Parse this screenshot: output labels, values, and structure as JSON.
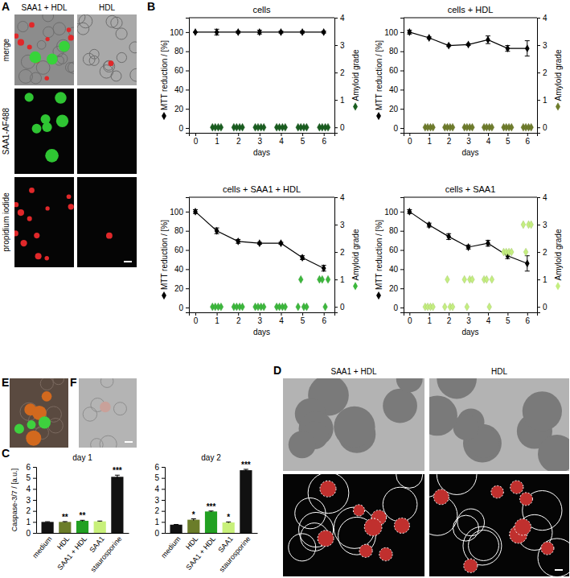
{
  "figure": {
    "panel_labels": [
      "A",
      "B",
      "C",
      "D",
      "E",
      "F"
    ],
    "panel_a": {
      "columns": [
        "SAA1 + HDL",
        "HDL"
      ],
      "rows": [
        "merge",
        "SAA1-AF488",
        "propidium iodide"
      ]
    },
    "panel_d": {
      "columns": [
        "SAA1 + HDL",
        "HDL"
      ]
    }
  },
  "chart_data": [
    {
      "type": "line",
      "title": "cells",
      "xlabel": "days",
      "ylabel": "MTT reduction / [%]",
      "y2label": "Amyloid grade",
      "x": [
        0,
        1,
        2,
        3,
        4,
        5,
        6
      ],
      "xlim": [
        -0.3,
        6.5
      ],
      "xticks": [
        0,
        1,
        2,
        3,
        4,
        5,
        6
      ],
      "ylim": [
        -5,
        115
      ],
      "yticks": [
        0,
        20,
        40,
        60,
        80,
        100
      ],
      "y2lim": [
        -0.2,
        4
      ],
      "y2ticks": [
        0,
        1,
        2,
        3,
        4
      ],
      "series": [
        {
          "type": "line",
          "marker": "diamond",
          "color": "#000000",
          "values": [
            100,
            100,
            100,
            100,
            100,
            100,
            100
          ],
          "errors": [
            0,
            3,
            1,
            2,
            1,
            1,
            1
          ]
        },
        {
          "type": "scatter",
          "marker": "diamond",
          "axis": "y2",
          "color": "#1a5e20",
          "x": [
            0.8,
            0.93,
            1.07,
            1.2,
            1.8,
            1.93,
            2.07,
            2.2,
            2.8,
            2.93,
            3.07,
            3.2,
            3.8,
            3.93,
            4.07,
            4.2,
            4.8,
            4.93,
            5.07,
            5.2,
            5.8,
            5.93,
            6.07,
            6.2
          ],
          "values": [
            0,
            0,
            0,
            0,
            0,
            0,
            0,
            0,
            0,
            0,
            0,
            0,
            0,
            0,
            0,
            0,
            0,
            0,
            0,
            0,
            0,
            0,
            0,
            0
          ]
        }
      ]
    },
    {
      "type": "line",
      "title": "cells + HDL",
      "xlabel": "days",
      "ylabel": "MTT reduction / [%]",
      "y2label": "Amyloid grade",
      "x": [
        0,
        1,
        2,
        3,
        4,
        5,
        6
      ],
      "xlim": [
        -0.3,
        6.5
      ],
      "xticks": [
        0,
        1,
        2,
        3,
        4,
        5,
        6
      ],
      "ylim": [
        -5,
        115
      ],
      "yticks": [
        0,
        20,
        40,
        60,
        80,
        100
      ],
      "y2lim": [
        -0.2,
        4
      ],
      "y2ticks": [
        0,
        1,
        2,
        3,
        4
      ],
      "series": [
        {
          "type": "line",
          "marker": "diamond",
          "color": "#000000",
          "values": [
            100,
            94,
            86,
            87,
            92,
            83,
            83
          ],
          "errors": [
            2,
            1,
            1,
            1,
            4,
            3,
            8
          ]
        },
        {
          "type": "scatter",
          "marker": "diamond",
          "axis": "y2",
          "color": "#6f7d2c",
          "x": [
            0.8,
            0.93,
            1.07,
            1.2,
            1.8,
            1.93,
            2.07,
            2.2,
            2.8,
            2.93,
            3.07,
            3.2,
            3.8,
            3.93,
            4.07,
            4.2,
            4.8,
            4.93,
            5.07,
            5.2,
            5.8,
            5.93,
            6.07,
            6.2
          ],
          "values": [
            0,
            0,
            0,
            0,
            0,
            0,
            0,
            0,
            0,
            0,
            0,
            0,
            0,
            0,
            0,
            0,
            0,
            0,
            0,
            0,
            0,
            0,
            0,
            0
          ]
        }
      ]
    },
    {
      "type": "line",
      "title": "cells + SAA1 + HDL",
      "xlabel": "days",
      "ylabel": "MTT reduction / [%]",
      "y2label": "Amyloid grade",
      "x": [
        0,
        1,
        2,
        3,
        4,
        5,
        6
      ],
      "xlim": [
        -0.3,
        6.5
      ],
      "xticks": [
        0,
        1,
        2,
        3,
        4,
        5,
        6
      ],
      "ylim": [
        -5,
        115
      ],
      "yticks": [
        0,
        20,
        40,
        60,
        80,
        100
      ],
      "y2lim": [
        -0.2,
        4
      ],
      "y2ticks": [
        0,
        1,
        2,
        3,
        4
      ],
      "series": [
        {
          "type": "line",
          "marker": "diamond",
          "color": "#000000",
          "values": [
            100,
            80,
            69,
            67,
            67,
            52,
            41
          ],
          "errors": [
            2,
            3,
            2,
            1,
            1,
            2,
            3
          ]
        },
        {
          "type": "scatter",
          "marker": "diamond",
          "axis": "y2",
          "color": "#3cb83c",
          "x": [
            0.8,
            0.93,
            1.07,
            1.2,
            1.8,
            1.93,
            2.07,
            2.2,
            2.8,
            2.93,
            3.07,
            3.2,
            3.8,
            3.93,
            4.07,
            4.2,
            4.8,
            4.93,
            5.07,
            5.2,
            5.8,
            5.93,
            6.07,
            6.2
          ],
          "values": [
            0,
            0,
            0,
            0,
            0,
            0,
            0,
            0,
            0,
            0,
            0,
            0,
            0,
            0,
            0,
            0,
            0,
            1,
            0,
            0,
            1,
            1,
            0,
            1
          ]
        }
      ]
    },
    {
      "type": "line",
      "title": "cells + SAA1",
      "xlabel": "days",
      "ylabel": "MTT reduction / [%]",
      "y2label": "Amyloid grade",
      "x": [
        0,
        1,
        2,
        3,
        4,
        5,
        6
      ],
      "xlim": [
        -0.3,
        6.5
      ],
      "xticks": [
        0,
        1,
        2,
        3,
        4,
        5,
        6
      ],
      "ylim": [
        -5,
        115
      ],
      "yticks": [
        0,
        20,
        40,
        60,
        80,
        100
      ],
      "y2lim": [
        -0.2,
        4
      ],
      "y2ticks": [
        0,
        1,
        2,
        3,
        4
      ],
      "series": [
        {
          "type": "line",
          "marker": "diamond",
          "color": "#000000",
          "values": [
            100,
            86,
            74,
            63,
            67,
            54,
            46
          ],
          "errors": [
            2,
            2,
            3,
            2,
            3,
            3,
            8
          ]
        },
        {
          "type": "scatter",
          "marker": "diamond",
          "axis": "y2",
          "color": "#c4ee80",
          "x": [
            0.8,
            0.93,
            1.07,
            1.2,
            1.8,
            1.93,
            2.07,
            2.2,
            2.8,
            2.93,
            3.07,
            3.2,
            3.8,
            3.93,
            4.07,
            4.2,
            4.8,
            4.93,
            5.07,
            5.2,
            5.8,
            5.93,
            6.07,
            6.2
          ],
          "values": [
            0,
            0,
            0,
            0,
            0,
            1,
            0,
            0,
            1,
            0,
            1,
            1,
            1,
            1,
            0,
            1,
            2,
            2,
            2,
            2,
            3,
            2,
            3,
            3
          ]
        }
      ]
    },
    {
      "type": "bar",
      "title": "day 1",
      "ylabel": "Caspase-3/7 / [a.u.]",
      "categories": [
        "medium",
        "HDL",
        "SAA1 + HDL",
        "SAA1",
        "staurosporine"
      ],
      "values": [
        1.0,
        1.0,
        1.1,
        1.05,
        5.1
      ],
      "errors": [
        0.02,
        0.03,
        0.05,
        0.03,
        0.15
      ],
      "significance": [
        null,
        "**",
        "**",
        null,
        "***"
      ],
      "colors": [
        "#111111",
        "#6b7d2a",
        "#22a022",
        "#c8f07a",
        "#111111"
      ],
      "ylim": [
        0,
        6
      ],
      "yticks": [
        0,
        1,
        2,
        3,
        4,
        5,
        6
      ]
    },
    {
      "type": "bar",
      "title": "day 2",
      "categories": [
        "medium",
        "HDL",
        "SAA1 + HDL",
        "SAA1",
        "staurosporine"
      ],
      "values": [
        0.75,
        1.2,
        1.95,
        0.95,
        5.7
      ],
      "errors": [
        0.02,
        0.08,
        0.04,
        0.05,
        0.08
      ],
      "significance": [
        null,
        "*",
        "***",
        "*",
        "***"
      ],
      "colors": [
        "#111111",
        "#6b7d2a",
        "#22a022",
        "#c8f07a",
        "#111111"
      ],
      "ylim": [
        0,
        6
      ],
      "yticks": [
        0,
        1,
        2,
        3,
        4,
        5,
        6
      ]
    }
  ]
}
